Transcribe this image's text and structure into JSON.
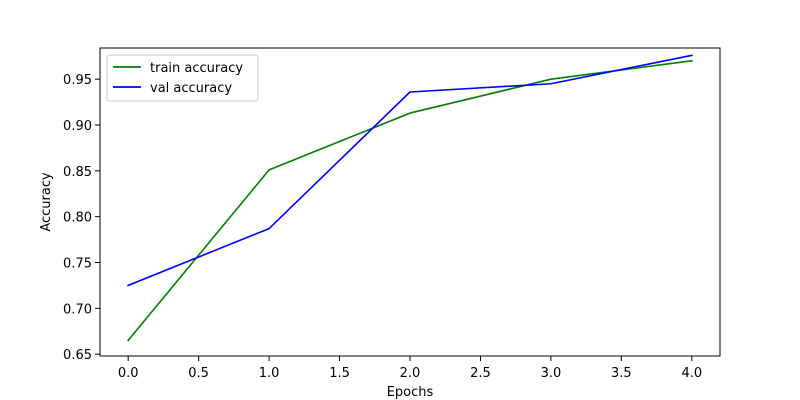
{
  "chart_data": {
    "type": "line",
    "title": "",
    "xlabel": "Epochs",
    "ylabel": "Accuracy",
    "xlim": [
      -0.2,
      4.2
    ],
    "ylim": [
      0.648,
      0.984
    ],
    "xticks": [
      0.0,
      0.5,
      1.0,
      1.5,
      2.0,
      2.5,
      3.0,
      3.5,
      4.0
    ],
    "xtick_labels": [
      "0.0",
      "0.5",
      "1.0",
      "1.5",
      "2.0",
      "2.5",
      "3.0",
      "3.5",
      "4.0"
    ],
    "yticks": [
      0.65,
      0.7,
      0.75,
      0.8,
      0.85,
      0.9,
      0.95
    ],
    "ytick_labels": [
      "0.65",
      "0.70",
      "0.75",
      "0.80",
      "0.85",
      "0.90",
      "0.95"
    ],
    "x": [
      0,
      1,
      2,
      3,
      4
    ],
    "series": [
      {
        "name": "train accuracy",
        "color": "#008000",
        "values": [
          0.665,
          0.851,
          0.913,
          0.95,
          0.97
        ]
      },
      {
        "name": "val accuracy",
        "color": "#0000ff",
        "values": [
          0.725,
          0.787,
          0.936,
          0.945,
          0.976
        ]
      }
    ],
    "grid": false,
    "legend_position": "top-left"
  }
}
